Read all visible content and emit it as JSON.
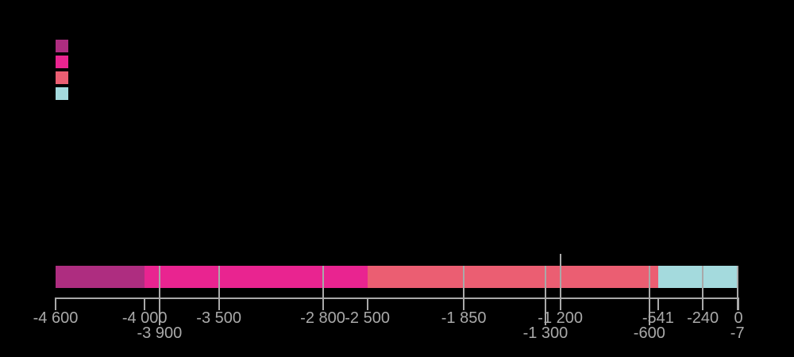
{
  "canvas": {
    "background": "#000000"
  },
  "legend": {
    "items": [
      {
        "name": "legend-swatch-purple",
        "color": "#AE2D80"
      },
      {
        "name": "legend-swatch-pink",
        "color": "#E92490"
      },
      {
        "name": "legend-swatch-salmon",
        "color": "#EB5E72"
      },
      {
        "name": "legend-swatch-light-blue",
        "color": "#A4DADD"
      }
    ]
  },
  "chart_data": {
    "type": "bar",
    "orientation": "horizontal",
    "title": "",
    "xlabel": "",
    "ylabel": "",
    "xlim": [
      -4600,
      0
    ],
    "grid": "partial-vertical-lines-through-bar",
    "legend_position": "top-left",
    "axis_color": "#A9A9A9",
    "label_color": "#A9A9A9",
    "segments": [
      {
        "start": -4600,
        "end": -4000,
        "color": "#AE2D80"
      },
      {
        "start": -4000,
        "end": -2500,
        "color": "#E92490"
      },
      {
        "start": -2500,
        "end": -541,
        "color": "#EB5E72"
      },
      {
        "start": -541,
        "end": 0,
        "color": "#A4DADD"
      }
    ],
    "ticks": [
      {
        "value": -4600,
        "label": "-4 600",
        "row": 1,
        "line_from": "axis"
      },
      {
        "value": -4000,
        "label": "-4 000",
        "row": 1,
        "line_from": "axis"
      },
      {
        "value": -3900,
        "label": "-3 900",
        "row": 2,
        "line_from": "bar"
      },
      {
        "value": -3500,
        "label": "-3 500",
        "row": 1,
        "line_from": "bar"
      },
      {
        "value": -2800,
        "label": "-2 800",
        "row": 1,
        "line_from": "bar"
      },
      {
        "value": -2500,
        "label": "-2 500",
        "row": 1,
        "line_from": "axis"
      },
      {
        "value": -1850,
        "label": "-1 850",
        "row": 1,
        "line_from": "bar"
      },
      {
        "value": -1300,
        "label": "-1 300",
        "row": 2,
        "line_from": "bar"
      },
      {
        "value": -1200,
        "label": "-1 200",
        "row": 1,
        "line_from": "above"
      },
      {
        "value": -600,
        "label": "-600",
        "row": 2,
        "line_from": "bar"
      },
      {
        "value": -541,
        "label": "-541",
        "row": 1,
        "line_from": "axis"
      },
      {
        "value": -240,
        "label": "-240",
        "row": 1,
        "line_from": "bar"
      },
      {
        "value": -7,
        "label": "-7",
        "row": 2,
        "line_from": "bar",
        "line_to": 1
      },
      {
        "value": 0,
        "label": "0",
        "row": 1,
        "line_from": "axis"
      }
    ]
  }
}
